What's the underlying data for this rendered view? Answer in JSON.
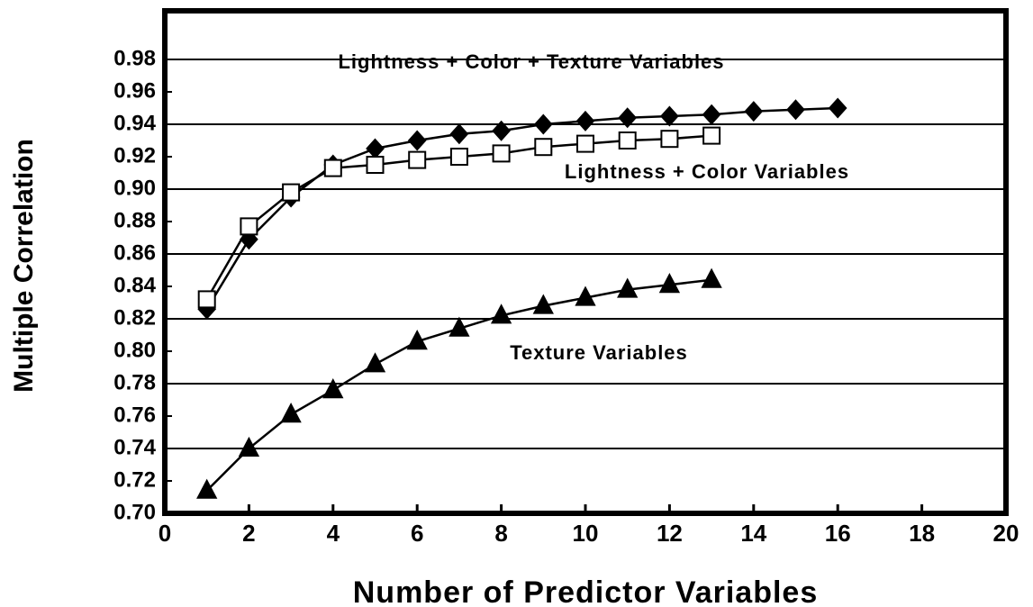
{
  "chart_data": {
    "type": "line",
    "x_label": "Number of  Predictor Variables",
    "y_label": "Multiple    Correlation",
    "xlim": [
      0,
      20
    ],
    "xticks": [
      0,
      2,
      4,
      6,
      8,
      10,
      12,
      14,
      16,
      18,
      20
    ],
    "ylim": [
      0.7,
      1.01
    ],
    "yticks": [
      {
        "value": 0.7,
        "label": "0.70"
      },
      {
        "value": 0.72,
        "label": "0.72"
      },
      {
        "value": 0.74,
        "label": "0.74"
      },
      {
        "value": 0.76,
        "label": "0.76"
      },
      {
        "value": 0.78,
        "label": "0.78"
      },
      {
        "value": 0.8,
        "label": "0.80"
      },
      {
        "value": 0.82,
        "label": "0.82"
      },
      {
        "value": 0.84,
        "label": "0.84"
      },
      {
        "value": 0.86,
        "label": "0.86"
      },
      {
        "value": 0.88,
        "label": "0.88"
      },
      {
        "value": 0.9,
        "label": "0.90"
      },
      {
        "value": 0.92,
        "label": "0.92"
      },
      {
        "value": 0.94,
        "label": "0.94"
      },
      {
        "value": 0.96,
        "label": "0.96"
      },
      {
        "value": 0.98,
        "label": "0.98"
      }
    ],
    "grid": true,
    "series": [
      {
        "name": "Lightness + Color + Texture Variables",
        "color": "#000000",
        "marker": "diamond",
        "x": [
          1,
          2,
          3,
          4,
          5,
          6,
          7,
          8,
          9,
          10,
          11,
          12,
          13,
          14,
          15,
          16
        ],
        "values": [
          0.826,
          0.869,
          0.895,
          0.915,
          0.925,
          0.93,
          0.934,
          0.936,
          0.94,
          0.942,
          0.944,
          0.945,
          0.946,
          0.948,
          0.949,
          0.95
        ]
      },
      {
        "name": "Lightness + Color Variables",
        "color": "#000000",
        "marker": "square",
        "x": [
          1,
          2,
          3,
          4,
          5,
          6,
          7,
          8,
          9,
          10,
          11,
          12,
          13
        ],
        "values": [
          0.832,
          0.877,
          0.898,
          0.913,
          0.915,
          0.918,
          0.92,
          0.922,
          0.926,
          0.928,
          0.93,
          0.931,
          0.933
        ]
      },
      {
        "name": "Texture Variables",
        "color": "#000000",
        "marker": "triangle",
        "x": [
          1,
          2,
          3,
          4,
          5,
          6,
          7,
          8,
          9,
          10,
          11,
          12,
          13
        ],
        "values": [
          0.714,
          0.74,
          0.761,
          0.776,
          0.792,
          0.806,
          0.814,
          0.822,
          0.828,
          0.833,
          0.838,
          0.841,
          0.844
        ]
      }
    ]
  }
}
